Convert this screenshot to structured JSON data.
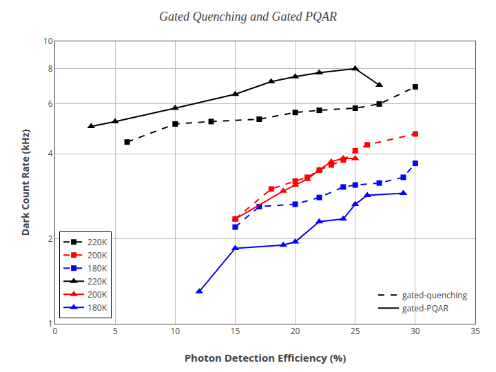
{
  "chart_data": {
    "type": "line",
    "title": "Gated Quenching and Gated PQAR",
    "xlabel": "Photon Detection Efficiency (%)",
    "ylabel": "Dark Count Rate (kHz)",
    "xlim": [
      0,
      35
    ],
    "ylim": [
      1,
      10
    ],
    "xticks": [
      0,
      5,
      10,
      15,
      20,
      25,
      30,
      35
    ],
    "yticks": [
      1,
      2,
      4,
      6,
      8,
      10
    ],
    "log": "y",
    "grid": true,
    "legend": "lower left",
    "series": [
      {
        "name": "220K",
        "color": "black",
        "line_style": "dashed",
        "marker": "square",
        "x": [
          6,
          10,
          13,
          17,
          20,
          22,
          25,
          27,
          30
        ],
        "values": [
          4.4,
          5.1,
          5.2,
          5.3,
          5.6,
          5.7,
          5.8,
          6.0,
          6.9
        ]
      },
      {
        "name": "200K",
        "color": "red",
        "line_style": "dashed",
        "marker": "square",
        "x": [
          15,
          18,
          20,
          21,
          22,
          23,
          24,
          25,
          26,
          30
        ],
        "values": [
          2.35,
          3.0,
          3.2,
          3.3,
          3.5,
          3.65,
          3.8,
          4.1,
          4.3,
          4.7
        ]
      },
      {
        "name": "180K",
        "color": "blue",
        "line_style": "dashed",
        "marker": "square",
        "x": [
          15,
          17,
          20,
          22,
          24,
          25,
          27,
          29,
          30
        ],
        "values": [
          2.2,
          2.6,
          2.65,
          2.8,
          3.05,
          3.1,
          3.15,
          3.3,
          3.7
        ]
      },
      {
        "name": "220K",
        "color": "black",
        "line_style": "solid",
        "marker": "triangle-up",
        "x": [
          3,
          5,
          10,
          15,
          18,
          20,
          22,
          25,
          27
        ],
        "values": [
          5.0,
          5.2,
          5.8,
          6.5,
          7.2,
          7.5,
          7.75,
          8.0,
          7.0
        ]
      },
      {
        "name": "200K",
        "color": "red",
        "line_style": "solid",
        "marker": "triangle-up",
        "x": [
          15,
          19,
          20,
          21,
          22,
          23,
          24,
          25
        ],
        "values": [
          2.35,
          2.95,
          3.1,
          3.25,
          3.5,
          3.75,
          3.85,
          3.85
        ]
      },
      {
        "name": "180K",
        "color": "blue",
        "line_style": "solid",
        "marker": "triangle-up",
        "x": [
          12,
          15,
          19,
          20,
          22,
          24,
          25,
          26,
          29
        ],
        "values": [
          1.3,
          1.85,
          1.9,
          1.95,
          2.3,
          2.35,
          2.65,
          2.85,
          2.9
        ]
      }
    ],
    "line_styles": [
      {
        "name": "gated-quenching",
        "line_style": "dashed",
        "color": "black"
      },
      {
        "name": "gated-PQAR",
        "line_style": "solid",
        "color": "black"
      }
    ]
  }
}
